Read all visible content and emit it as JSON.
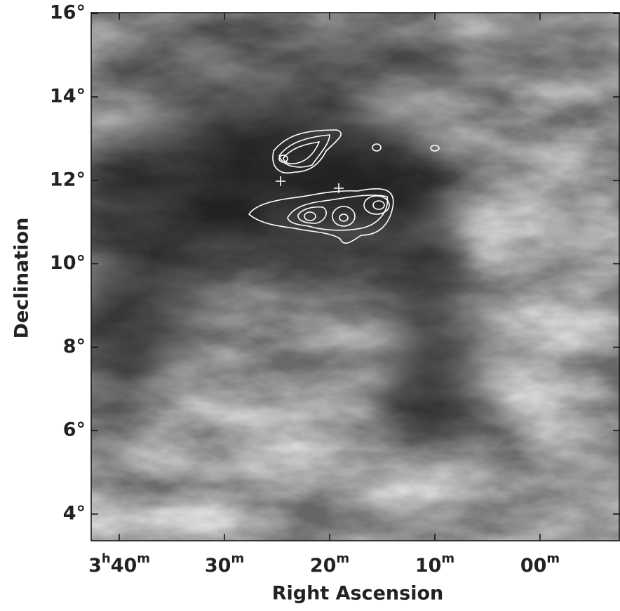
{
  "chart_data": {
    "type": "image",
    "xlabel": "Right Ascension",
    "ylabel": "Declination",
    "xlim": [
      42.67,
      -7.6
    ],
    "ylim": [
      3.36,
      16.02
    ],
    "xticks": [
      {
        "value": 40,
        "label": [
          "3",
          "h",
          "40",
          "m"
        ]
      },
      {
        "value": 30,
        "label": [
          "30",
          "m"
        ]
      },
      {
        "value": 20,
        "label": [
          "20",
          "m"
        ]
      },
      {
        "value": 10,
        "label": [
          "10",
          "m"
        ]
      },
      {
        "value": 0,
        "label": [
          "00",
          "m"
        ]
      }
    ],
    "yticks": [
      {
        "value": 4,
        "label": "4°"
      },
      {
        "value": 6,
        "label": "6°"
      },
      {
        "value": 8,
        "label": "8°"
      },
      {
        "value": 10,
        "label": "10°"
      },
      {
        "value": 12,
        "label": "12°"
      },
      {
        "value": 14,
        "label": "14°"
      },
      {
        "value": 16,
        "label": "16°"
      }
    ]
  }
}
